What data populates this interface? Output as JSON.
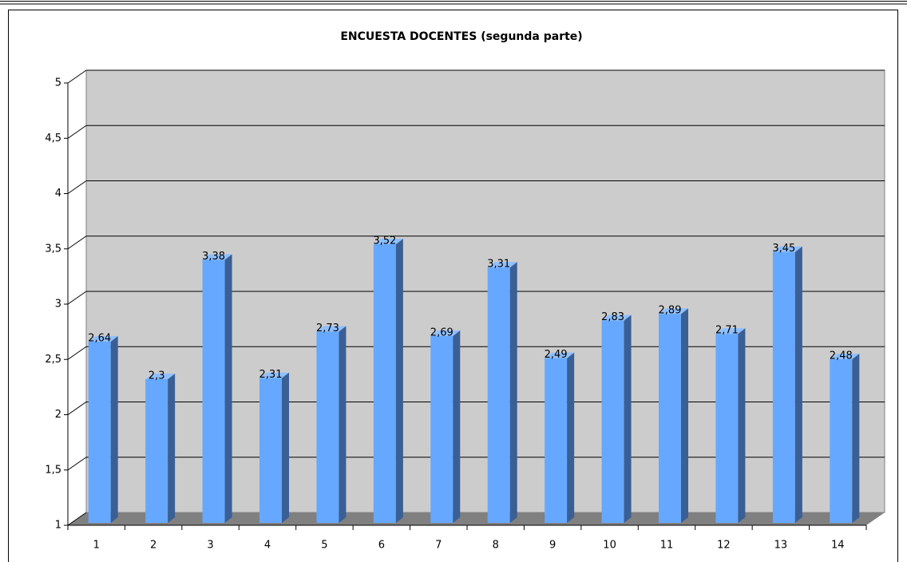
{
  "chart_data": {
    "type": "bar3d",
    "title": "ENCUESTA DOCENTES (segunda parte)",
    "categories": [
      "1",
      "2",
      "3",
      "4",
      "5",
      "6",
      "7",
      "8",
      "9",
      "10",
      "11",
      "12",
      "13",
      "14"
    ],
    "values": [
      2.64,
      2.3,
      3.38,
      2.31,
      2.73,
      3.52,
      2.69,
      3.31,
      2.49,
      2.83,
      2.89,
      2.71,
      3.45,
      2.48
    ],
    "value_labels": [
      "2,64",
      "2,3",
      "3,38",
      "2,31",
      "2,73",
      "3,52",
      "2,69",
      "3,31",
      "2,49",
      "2,83",
      "2,89",
      "2,71",
      "3,45",
      "2,48"
    ],
    "color": "#66a8ff",
    "ylim": [
      1,
      5
    ],
    "yticks": [
      1,
      {
        "value": 1.5,
        "label": "1,5"
      },
      2,
      {
        "value": 2.5,
        "label": "2,5"
      },
      3,
      {
        "value": 3.5,
        "label": "3,5"
      },
      4,
      {
        "value": 4.5,
        "label": "4,5"
      },
      5
    ],
    "grid": true
  }
}
